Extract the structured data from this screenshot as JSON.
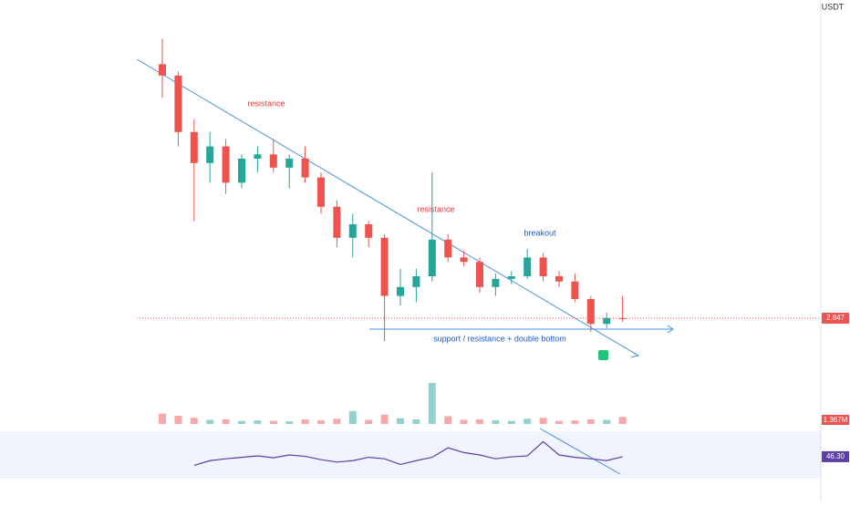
{
  "currency": "USDT",
  "annotations": {
    "resistance_1": "resistance",
    "resistance_2": "resistance",
    "breakout": "breakout",
    "support": "support / resistance + double bottom"
  },
  "chart_data": [
    {
      "type": "candlestick",
      "log_scale": true,
      "ylim": [
        1.7,
        50
      ],
      "up_color": "#26a69a",
      "down_color": "#ef5350",
      "categories": [
        null,
        null,
        null,
        null,
        null,
        null,
        null,
        null,
        null,
        null,
        null,
        null,
        null,
        null,
        null,
        null,
        null,
        null,
        null,
        null,
        null,
        null,
        null,
        null,
        null,
        null,
        null,
        null,
        null,
        null
      ],
      "open": [
        30,
        27,
        16,
        12,
        14,
        10,
        12.5,
        13,
        11.5,
        12.5,
        10.5,
        8,
        6,
        6.8,
        6,
        3.5,
        3.8,
        4.2,
        5.9,
        5.0,
        4.8,
        3.8,
        4.1,
        4.2,
        5.0,
        4.2,
        4.0,
        3.4,
        2.7,
        2.85
      ],
      "high": [
        38,
        28,
        18,
        16,
        15,
        13,
        14,
        15,
        13,
        14,
        11,
        8.5,
        7.5,
        7,
        6.2,
        4.5,
        4.5,
        11,
        6.2,
        5.3,
        5.0,
        4.3,
        4.4,
        5.4,
        5.2,
        4.4,
        4.3,
        3.5,
        3.0,
        3.5
      ],
      "low": [
        22,
        14,
        7,
        10,
        9,
        9.5,
        11,
        11,
        9.5,
        10,
        7.5,
        5.5,
        5,
        5.5,
        2.3,
        3.2,
        3.3,
        4,
        4.8,
        4.6,
        3.6,
        3.5,
        3.9,
        4.1,
        4.0,
        3.8,
        3.3,
        2.5,
        2.6,
        2.75
      ],
      "close": [
        27,
        16,
        12,
        14,
        10,
        12.5,
        13,
        11.5,
        12.5,
        10.5,
        8,
        6,
        6.8,
        6,
        3.5,
        3.8,
        4.2,
        5.9,
        5.0,
        4.8,
        3.8,
        4.1,
        4.2,
        5.0,
        4.2,
        4.0,
        3.4,
        2.7,
        2.85,
        2.847
      ]
    },
    {
      "type": "bar",
      "ylim": [
        0,
        8
      ],
      "last_label": "1.367M",
      "values": [
        2.0,
        1.6,
        1.2,
        0.8,
        0.9,
        0.6,
        0.7,
        0.6,
        0.5,
        0.9,
        0.7,
        1.0,
        2.5,
        0.8,
        1.8,
        1.1,
        0.9,
        8.0,
        1.5,
        0.8,
        0.9,
        0.7,
        0.6,
        1.0,
        1.2,
        0.6,
        0.7,
        0.9,
        0.8,
        1.367
      ]
    },
    {
      "type": "line",
      "color": "#5b3fa6",
      "ylim": [
        0,
        100
      ],
      "band": [
        0,
        100
      ],
      "last_label": "46.30",
      "values": [
        null,
        null,
        28,
        38,
        42,
        45,
        48,
        44,
        50,
        47,
        40,
        35,
        38,
        45,
        42,
        30,
        38,
        45,
        65,
        55,
        50,
        42,
        46,
        48,
        78,
        50,
        45,
        42,
        38,
        46.3
      ]
    }
  ]
}
